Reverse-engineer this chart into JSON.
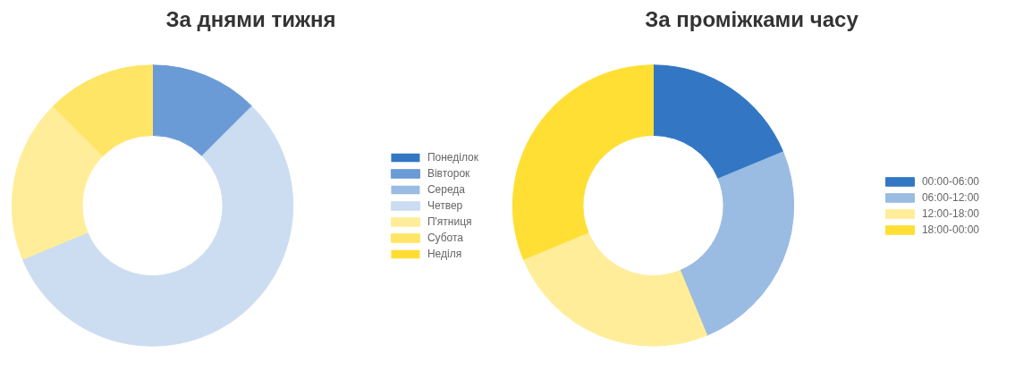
{
  "chart_data": [
    {
      "type": "donut",
      "title": "За днями тижня",
      "categories": [
        "Понеділок",
        "Вівторок",
        "Середа",
        "Четвер",
        "П'ятниця",
        "Субота",
        "Неділя"
      ],
      "values": [
        0,
        12.5,
        0,
        56.25,
        18.75,
        12.5,
        0
      ],
      "colors": [
        "#3377c4",
        "#6a9bd6",
        "#9abbe2",
        "#ccddf1",
        "#ffed99",
        "#ffe566",
        "#ffdd33"
      ],
      "legend": "right"
    },
    {
      "type": "donut",
      "title": "За проміжками часу",
      "categories": [
        "00:00-06:00",
        "06:00-12:00",
        "12:00-18:00",
        "18:00-00:00"
      ],
      "values": [
        18.75,
        25,
        25,
        31.25
      ],
      "colors": [
        "#3377c4",
        "#9abbe2",
        "#ffed99",
        "#ffdf33"
      ],
      "legend": "right"
    }
  ]
}
